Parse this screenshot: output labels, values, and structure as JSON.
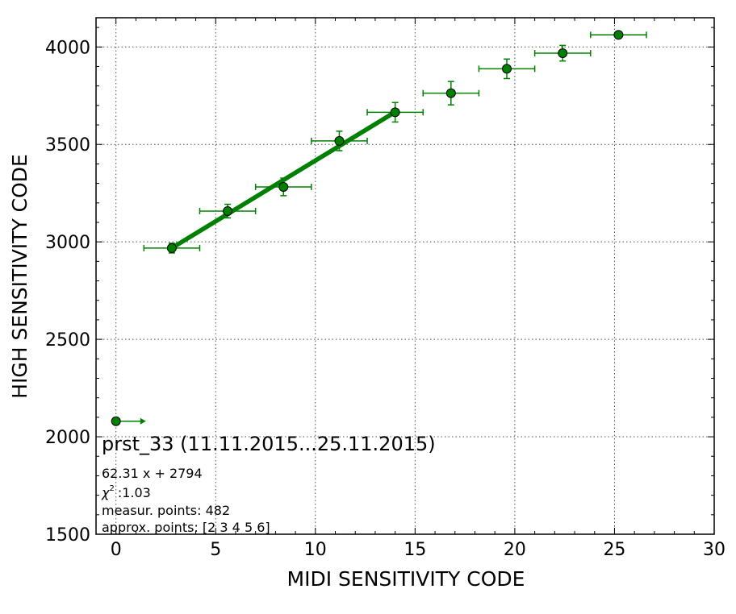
{
  "chart_data": {
    "type": "scatter",
    "title": "prst_33 (11.11.2015...25.11.2015)",
    "xlabel": "MIDI SENSITIVITY CODE",
    "ylabel": "HIGH SENSITIVITY CODE",
    "xlim": [
      -1,
      30
    ],
    "ylim": [
      1500,
      4150
    ],
    "xticks": [
      0,
      5,
      10,
      15,
      20,
      25,
      30
    ],
    "yticks": [
      1500,
      2000,
      2500,
      3000,
      3500,
      4000
    ],
    "grid": true,
    "colors": {
      "series": "#008000",
      "marker_edge": "#000000",
      "fit_line": "#008000"
    },
    "series": {
      "points": [
        {
          "x": 2.8,
          "y": 2968,
          "xerr": 1.4,
          "yerr": 25
        },
        {
          "x": 5.6,
          "y": 3158,
          "xerr": 1.4,
          "yerr": 35
        },
        {
          "x": 8.4,
          "y": 3282,
          "xerr": 1.4,
          "yerr": 45
        },
        {
          "x": 11.2,
          "y": 3518,
          "xerr": 1.4,
          "yerr": 50
        },
        {
          "x": 14.0,
          "y": 3665,
          "xerr": 1.4,
          "yerr": 50
        },
        {
          "x": 16.8,
          "y": 3763,
          "xerr": 1.4,
          "yerr": 60
        },
        {
          "x": 19.6,
          "y": 3888,
          "xerr": 1.4,
          "yerr": 50
        },
        {
          "x": 22.4,
          "y": 3968,
          "xerr": 1.4,
          "yerr": 40
        },
        {
          "x": 25.2,
          "y": 4062,
          "xerr": 1.4,
          "yerr": 10
        }
      ],
      "lower_limit_point": {
        "x": 0,
        "y": 2080,
        "arrow_to_x": 1.5
      }
    },
    "fit": {
      "slope": 62.31,
      "intercept": 2794,
      "x_from": 2.8,
      "x_to": 14.0
    },
    "annotations": [
      "62.31 x + 2794",
      ":1.03",
      "measur. points: 482",
      "approx. points: [2 3 4 5 6]"
    ],
    "chi_symbol": "χ",
    "chi_power": "2"
  }
}
